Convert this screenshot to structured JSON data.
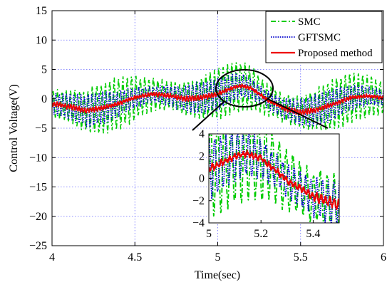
{
  "chart_data": {
    "type": "line",
    "xlabel": "Time(sec)",
    "ylabel": "Control Voltage(V)",
    "xlim": [
      4,
      6
    ],
    "ylim": [
      -25,
      15
    ],
    "xticks": [
      4,
      4.5,
      5,
      5.5,
      6
    ],
    "xtick_labels": [
      "4",
      "4.5",
      "5",
      "5.5",
      "6"
    ],
    "yticks": [
      -25,
      -20,
      -15,
      -10,
      -5,
      0,
      5,
      10,
      15
    ],
    "ytick_labels": [
      "−25",
      "−20",
      "−15",
      "−10",
      "−5",
      "0",
      "5",
      "10",
      "15"
    ],
    "grid": true,
    "legend_position": "top-right",
    "series": [
      {
        "name": "SMC",
        "color": "#00cc00",
        "style": "dash-dot",
        "amplitude": 4.2,
        "freq": 38,
        "noise": 0.9
      },
      {
        "name": "GFTSMC",
        "color": "#0000cc",
        "style": "dotted",
        "amplitude": 2.6,
        "freq": 46,
        "noise": 0.7
      },
      {
        "name": "Proposed method",
        "color": "#ee0000",
        "style": "solid",
        "amplitude": 0.35,
        "freq": 60,
        "noise": 0.35
      }
    ],
    "baseline": {
      "x": [
        4.0,
        4.1,
        4.2,
        4.3,
        4.4,
        4.5,
        4.6,
        4.7,
        4.8,
        4.9,
        5.0,
        5.05,
        5.1,
        5.15,
        5.2,
        5.25,
        5.3,
        5.4,
        5.5,
        5.6,
        5.7,
        5.8,
        5.9,
        6.0
      ],
      "y": [
        -0.8,
        -1.3,
        -2.0,
        -1.6,
        -0.8,
        0.2,
        0.8,
        0.6,
        0.0,
        0.2,
        0.8,
        1.4,
        2.0,
        2.2,
        1.8,
        0.9,
        -0.2,
        -1.6,
        -2.4,
        -1.8,
        -0.9,
        0.2,
        0.5,
        0.2
      ]
    },
    "inset": {
      "xlim": [
        5,
        5.5
      ],
      "ylim": [
        -4,
        4
      ],
      "xticks": [
        5,
        5.2,
        5.4
      ],
      "xtick_labels": [
        "5",
        "5.2",
        "5.4"
      ],
      "yticks": [
        -4,
        -2,
        0,
        2,
        4
      ],
      "ytick_labels": [
        "−4",
        "−2",
        "0",
        "2",
        "4"
      ]
    }
  }
}
